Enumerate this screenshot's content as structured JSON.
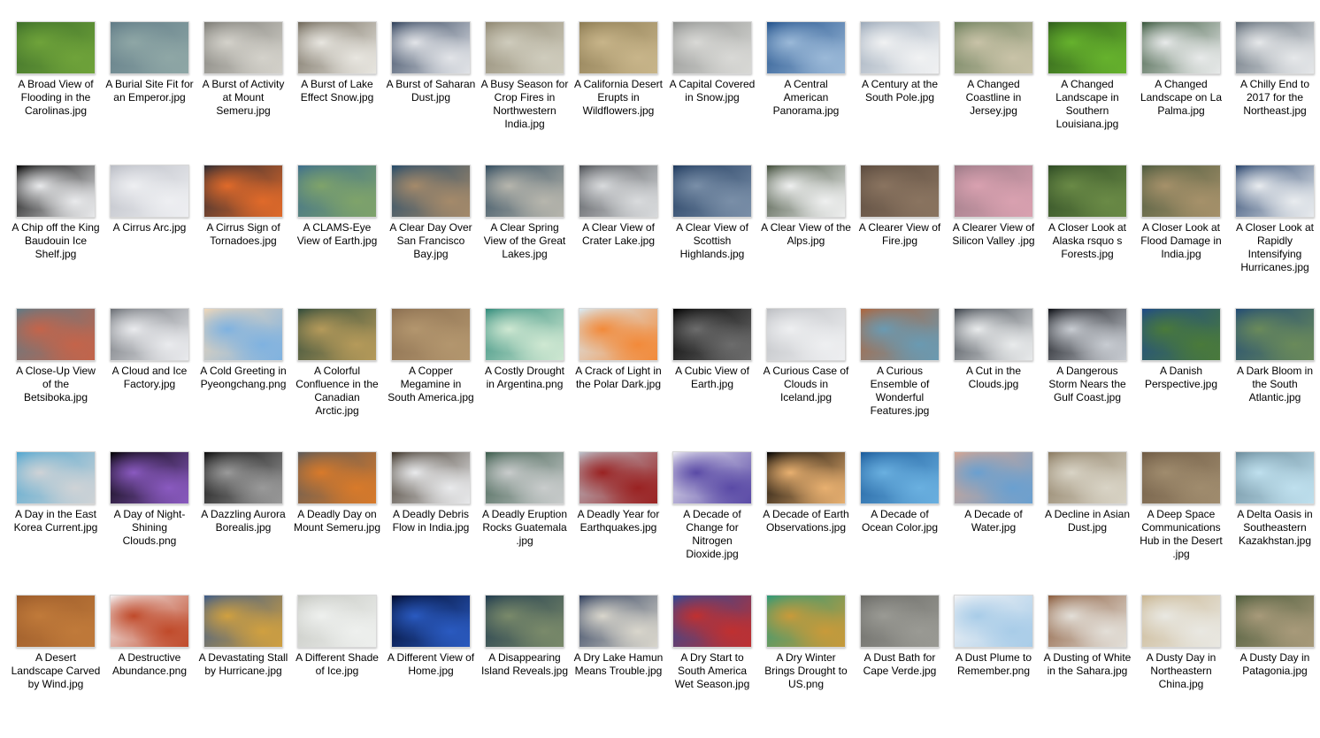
{
  "files": [
    {
      "name": "A Broad View of Flooding in the Carolinas.jpg",
      "colors": [
        "#3d6e2a",
        "#6fa33a"
      ]
    },
    {
      "name": "A Burial Site Fit for an Emperor.jpg",
      "colors": [
        "#5f7a86",
        "#8fa7a6"
      ]
    },
    {
      "name": "A Burst of Activity at Mount Semeru.jpg",
      "colors": [
        "#7b7a74",
        "#d4d2cb"
      ]
    },
    {
      "name": "A Burst of Lake Effect Snow.jpg",
      "colors": [
        "#6e6657",
        "#e8e6e0"
      ]
    },
    {
      "name": "A Burst of Saharan Dust.jpg",
      "colors": [
        "#2d3e58",
        "#e2e4e8"
      ]
    },
    {
      "name": "A Busy Season for Crop Fires in Northwestern India.jpg",
      "colors": [
        "#8e8670",
        "#cfccbd"
      ]
    },
    {
      "name": "A California Desert Erupts in Wildflowers.jpg",
      "colors": [
        "#8b7a52",
        "#c8b58a"
      ]
    },
    {
      "name": "A Capital Covered in Snow.jpg",
      "colors": [
        "#8f918f",
        "#d9d9d6"
      ]
    },
    {
      "name": "A Central American Panorama.jpg",
      "colors": [
        "#1f4f8a",
        "#9bb9d8"
      ]
    },
    {
      "name": "A Century at the South Pole.jpg",
      "colors": [
        "#9aa8b8",
        "#f1f2f3"
      ]
    },
    {
      "name": "A Changed Coastline in Jersey.jpg",
      "colors": [
        "#6a7d5a",
        "#c9c3a8"
      ]
    },
    {
      "name": "A Changed Landscape in Southern Louisiana.jpg",
      "colors": [
        "#2f5c1c",
        "#66b22d"
      ]
    },
    {
      "name": "A Changed Landscape on La Palma.jpg",
      "colors": [
        "#37553a",
        "#e8eaea"
      ]
    },
    {
      "name": "A Chilly End to 2017 for the Northeast.jpg",
      "colors": [
        "#5a6672",
        "#e6e8ea"
      ]
    },
    {
      "name": "A Chip off the King Baudouin Ice Shelf.jpg",
      "colors": [
        "#000000",
        "#e9eaec"
      ]
    },
    {
      "name": "A Cirrus Arc.jpg",
      "colors": [
        "#b9bcc4",
        "#eeeff2"
      ]
    },
    {
      "name": "A Cirrus Sign of Tornadoes.jpg",
      "colors": [
        "#2a2a33",
        "#e06a2a"
      ]
    },
    {
      "name": "A CLAMS-Eye View of Earth.jpg",
      "colors": [
        "#3c6e8e",
        "#7fa36a"
      ]
    },
    {
      "name": "A Clear Day Over San Francisco Bay.jpg",
      "colors": [
        "#234a6a",
        "#a58a6a"
      ]
    },
    {
      "name": "A Clear Spring View of the Great Lakes.jpg",
      "colors": [
        "#2f4a5e",
        "#b7b6ad"
      ]
    },
    {
      "name": "A Clear View of Crater Lake.jpg",
      "colors": [
        "#4a4d52",
        "#d9dbdd"
      ]
    },
    {
      "name": "A Clear View of Scottish Highlands.jpg",
      "colors": [
        "#1f3a5e",
        "#7a8fa8"
      ]
    },
    {
      "name": "A Clear View of the Alps.jpg",
      "colors": [
        "#3d4a36",
        "#eff0f0"
      ]
    },
    {
      "name": "A Clearer View of Fire.jpg",
      "colors": [
        "#5a4a3e",
        "#8a7460"
      ]
    },
    {
      "name": "A Clearer View of Silicon Valley .jpg",
      "colors": [
        "#9a7a86",
        "#d9a1b0"
      ]
    },
    {
      "name": "A Closer Look at Alaska rsquo s Forests.jpg",
      "colors": [
        "#2d4a24",
        "#6a8a46"
      ]
    },
    {
      "name": "A Closer Look at Flood Damage in India.jpg",
      "colors": [
        "#4b5a3e",
        "#a6916a"
      ]
    },
    {
      "name": "A Closer Look at Rapidly Intensifying Hurricanes.jpg",
      "colors": [
        "#24406a",
        "#e9ecef"
      ]
    },
    {
      "name": "A Close-Up View of the Betsiboka.jpg",
      "colors": [
        "#5e7a86",
        "#c4644a"
      ]
    },
    {
      "name": "A Cloud and Ice Factory.jpg",
      "colors": [
        "#6a6e74",
        "#eaebee"
      ]
    },
    {
      "name": "A Cold Greeting in Pyeongchang.png",
      "colors": [
        "#f2d8b8",
        "#7fb2e0"
      ]
    },
    {
      "name": "A Colorful Confluence in the Canadian Arctic.jpg",
      "colors": [
        "#2f4a3a",
        "#b59a5a"
      ]
    },
    {
      "name": "A Copper Megamine in South America.jpg",
      "colors": [
        "#8a6e50",
        "#b3966e"
      ]
    },
    {
      "name": "A Costly Drought in Argentina.png",
      "colors": [
        "#2f8a7a",
        "#cfe8d2"
      ]
    },
    {
      "name": "A Crack of Light in the Polar Dark.jpg",
      "colors": [
        "#d9ecf6",
        "#f28a3a"
      ]
    },
    {
      "name": "A Cubic View of Earth.jpg",
      "colors": [
        "#000000",
        "#6c6c6c"
      ]
    },
    {
      "name": "A Curious Case of Clouds in Iceland.jpg",
      "colors": [
        "#bcbec2",
        "#eeeff1"
      ]
    },
    {
      "name": "A Curious Ensemble of Wonderful Features.jpg",
      "colors": [
        "#b0643a",
        "#6a9ab2"
      ]
    },
    {
      "name": "A Cut in the Clouds.jpg",
      "colors": [
        "#3a4048",
        "#e9ebec"
      ]
    },
    {
      "name": "A Dangerous Storm Nears the Gulf Coast.jpg",
      "colors": [
        "#0a0c12",
        "#c8ccd2"
      ]
    },
    {
      "name": "A Danish Perspective.jpg",
      "colors": [
        "#1e4a8a",
        "#4a7a3a"
      ]
    },
    {
      "name": "A Dark Bloom in the South Atlantic.jpg",
      "colors": [
        "#204a76",
        "#6a8a5a"
      ]
    },
    {
      "name": "A Day in the East Korea Current.jpg",
      "colors": [
        "#4fa6d0",
        "#cfd3d6"
      ]
    },
    {
      "name": "A Day of Night-Shining Clouds.png",
      "colors": [
        "#000000",
        "#8a5ac0"
      ]
    },
    {
      "name": "A Dazzling Aurora Borealis.jpg",
      "colors": [
        "#0a0a0a",
        "#9a9a9a"
      ]
    },
    {
      "name": "A Deadly Day on Mount Semeru.jpg",
      "colors": [
        "#5a5a5a",
        "#d87a2a"
      ]
    },
    {
      "name": "A Deadly Debris Flow in India.jpg",
      "colors": [
        "#3a3024",
        "#e9eaec"
      ]
    },
    {
      "name": "A Deadly Eruption Rocks Guatemala .jpg",
      "colors": [
        "#3a5a4a",
        "#c9cccc"
      ]
    },
    {
      "name": "A Deadly Year for Earthquakes.jpg",
      "colors": [
        "#bcc3cc",
        "#9a2222"
      ]
    },
    {
      "name": "A Decade of Change for Nitrogen Dioxide.jpg",
      "colors": [
        "#ecebf2",
        "#5a4aa6"
      ]
    },
    {
      "name": "A Decade of Earth Observations.jpg",
      "colors": [
        "#000000",
        "#e8b070"
      ]
    },
    {
      "name": "A Decade of Ocean Color.jpg",
      "colors": [
        "#1a5a9a",
        "#6ab0e0"
      ]
    },
    {
      "name": "A Decade of Water.jpg",
      "colors": [
        "#d9a690",
        "#6aa0d0"
      ]
    },
    {
      "name": "A Decline in Asian Dust.jpg",
      "colors": [
        "#8a7a60",
        "#d9d4c6"
      ]
    },
    {
      "name": "A Deep Space Communications Hub in the Desert .jpg",
      "colors": [
        "#6e5a44",
        "#a08c6e"
      ]
    },
    {
      "name": "A Delta Oasis in Southeastern Kazakhstan.jpg",
      "colors": [
        "#6a8a9a",
        "#bfe0ee"
      ]
    },
    {
      "name": "A Desert Landscape Carved by Wind.jpg",
      "colors": [
        "#9a5a2a",
        "#c07a3a"
      ]
    },
    {
      "name": "A Destructive Abundance.png",
      "colors": [
        "#f4f4f6",
        "#c04a2a"
      ]
    },
    {
      "name": "A Devastating Stall by Hurricane.jpg",
      "colors": [
        "#3a5a8a",
        "#d0a040"
      ]
    },
    {
      "name": "A Different Shade of Ice.jpg",
      "colors": [
        "#c4c6c0",
        "#eef0ee"
      ]
    },
    {
      "name": "A Different View of Home.jpg",
      "colors": [
        "#000a2a",
        "#2a5ac0"
      ]
    },
    {
      "name": "A Disappearing Island Reveals.jpg",
      "colors": [
        "#1e3a4e",
        "#7a8a6a"
      ]
    },
    {
      "name": "A Dry Lake Hamun Means Trouble.jpg",
      "colors": [
        "#2a3a5a",
        "#d9d6cc"
      ]
    },
    {
      "name": "A Dry Start to South America Wet Season.jpg",
      "colors": [
        "#2a4a9a",
        "#c03030"
      ]
    },
    {
      "name": "A Dry Winter Brings Drought to US.png",
      "colors": [
        "#2a9a7a",
        "#c89a3a"
      ]
    },
    {
      "name": "A Dust Bath for Cape Verde.jpg",
      "colors": [
        "#6a6a66",
        "#9a9a94"
      ]
    },
    {
      "name": "A Dust Plume to Remember.png",
      "colors": [
        "#f4f4f6",
        "#a8cce8"
      ]
    },
    {
      "name": "A Dusting of White in the Sahara.jpg",
      "colors": [
        "#8a5a3a",
        "#e3dfd8"
      ]
    },
    {
      "name": "A Dusty Day in Northeastern China.jpg",
      "colors": [
        "#c9b590",
        "#e9e8e2"
      ]
    },
    {
      "name": "A Dusty Day in Patagonia.jpg",
      "colors": [
        "#4a5a3a",
        "#a89a7a"
      ]
    }
  ]
}
